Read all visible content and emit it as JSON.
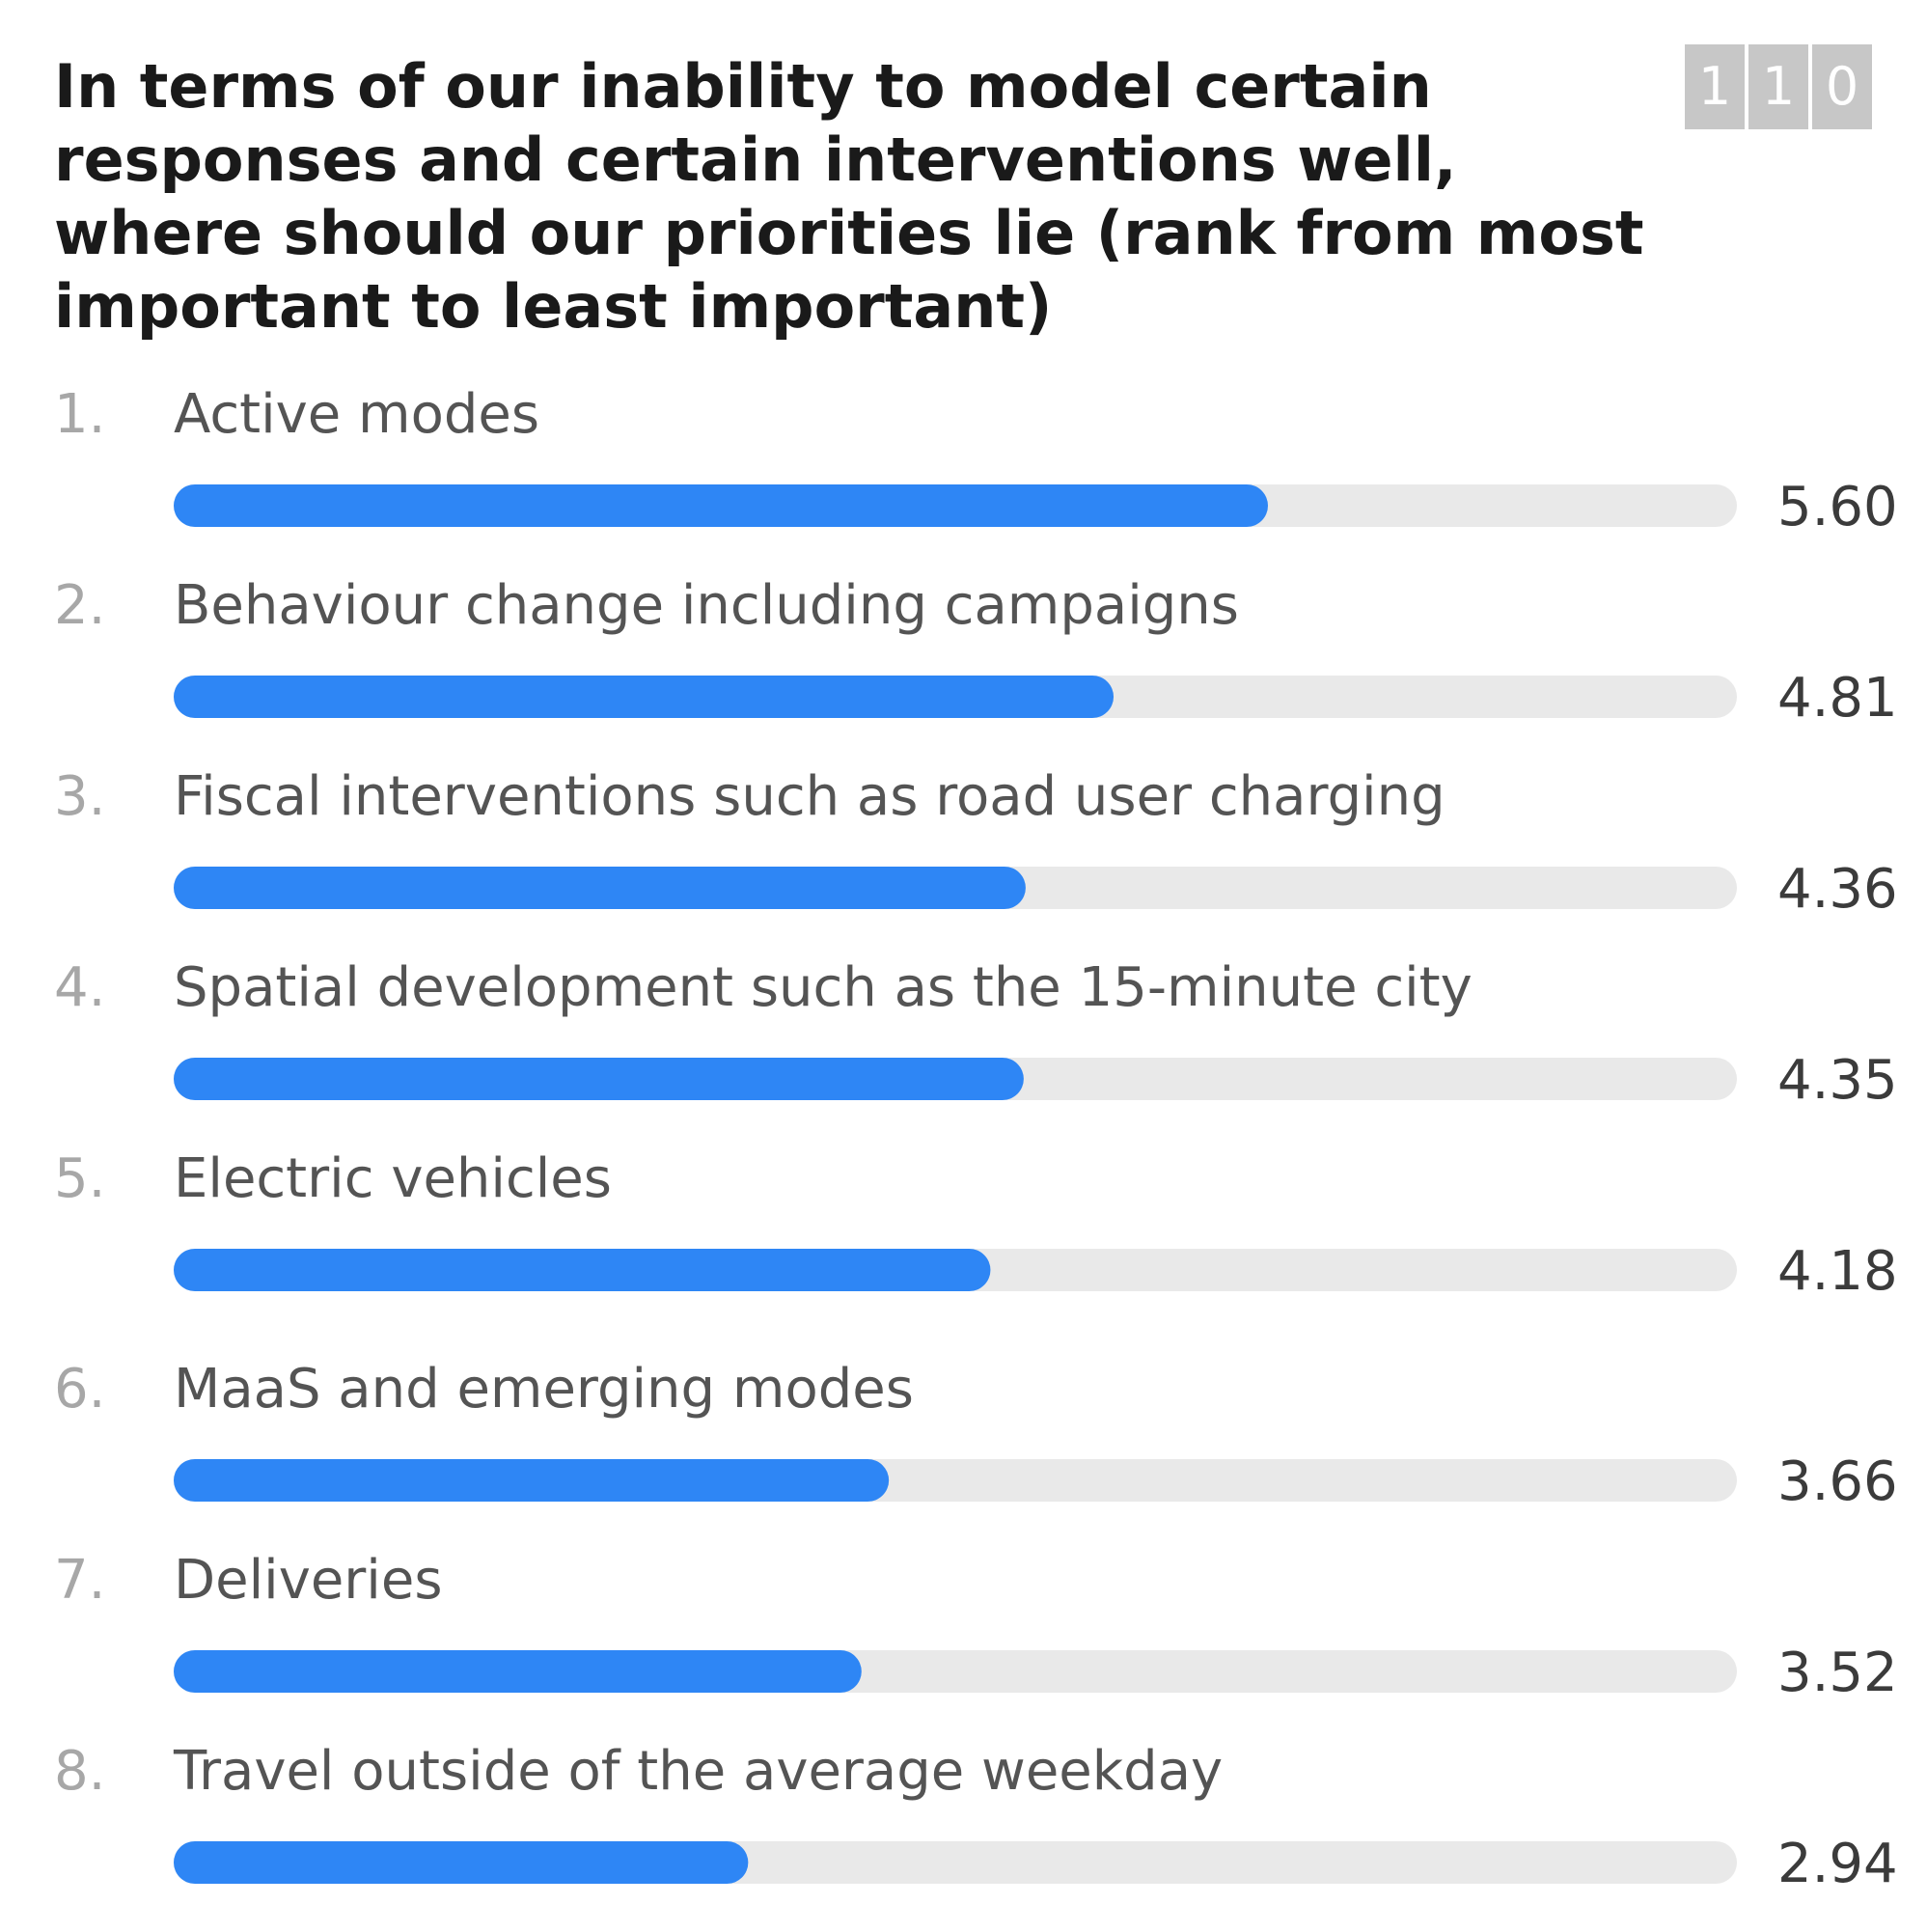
{
  "question": {
    "title": "In terms of our inability to model certain responses and certain interventions well, where should our priorities lie (rank from most important to least important)"
  },
  "response_counter": {
    "digits": [
      "1",
      "1",
      "0"
    ]
  },
  "colors": {
    "bar_fill": "#2e86f5",
    "bar_track": "#e9e9e9",
    "counter_bg": "#c7c7c7"
  },
  "chart_data": {
    "type": "bar",
    "orientation": "horizontal",
    "title": "In terms of our inability to model certain responses and certain interventions well, where should our priorities lie (rank from most important to least important)",
    "ranks": [
      "1.",
      "2.",
      "3.",
      "4.",
      "5.",
      "6.",
      "7.",
      "8."
    ],
    "categories": [
      "Active modes",
      "Behaviour change including campaigns",
      "Fiscal interventions such as road user charging",
      "Spatial development such as the 15-minute city",
      "Electric vehicles",
      "MaaS and emerging modes",
      "Deliveries",
      "Travel outside of the average weekday"
    ],
    "values": [
      5.6,
      4.81,
      4.36,
      4.35,
      4.18,
      3.66,
      3.52,
      2.94
    ],
    "value_labels": [
      "5.60",
      "4.81",
      "4.36",
      "4.35",
      "4.18",
      "3.66",
      "3.52",
      "2.94"
    ],
    "xlim": [
      0,
      8
    ],
    "grid": false
  }
}
